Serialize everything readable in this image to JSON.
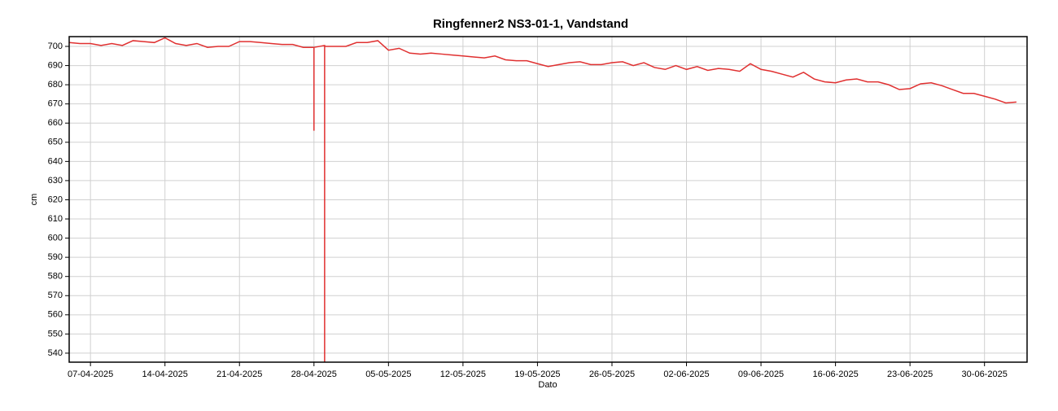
{
  "chart_data": {
    "type": "line",
    "title": "Ringfenner2 NS3-01-1, Vandstand",
    "x_label": "Dato",
    "y_label": "cm",
    "color": "#e03030",
    "grid": true,
    "xlim": [
      "05-04-2025",
      "04-07-2025"
    ],
    "xticks": [
      "07-04-2025",
      "14-04-2025",
      "21-04-2025",
      "28-04-2025",
      "05-05-2025",
      "12-05-2025",
      "19-05-2025",
      "26-05-2025",
      "02-06-2025",
      "09-06-2025",
      "16-06-2025",
      "23-06-2025",
      "30-06-2025"
    ],
    "ylim": [
      535.3,
      705.1
    ],
    "yticks": [
      540,
      550,
      560,
      570,
      580,
      590,
      600,
      610,
      620,
      630,
      640,
      650,
      660,
      670,
      680,
      690,
      700
    ],
    "x": [
      "05-04-2025",
      "06-04-2025",
      "07-04-2025",
      "08-04-2025",
      "09-04-2025",
      "10-04-2025",
      "11-04-2025",
      "12-04-2025",
      "13-04-2025",
      "14-04-2025",
      "15-04-2025",
      "16-04-2025",
      "17-04-2025",
      "18-04-2025",
      "19-04-2025",
      "20-04-2025",
      "21-04-2025",
      "22-04-2025",
      "23-04-2025",
      "24-04-2025",
      "25-04-2025",
      "26-04-2025",
      "27-04-2025",
      "28-04-2025",
      "28-04-2025",
      "28-04-2025",
      "29-04-2025",
      "29-04-2025",
      "29-04-2025",
      "30-04-2025",
      "01-05-2025",
      "02-05-2025",
      "03-05-2025",
      "04-05-2025",
      "05-05-2025",
      "06-05-2025",
      "07-05-2025",
      "08-05-2025",
      "09-05-2025",
      "10-05-2025",
      "11-05-2025",
      "12-05-2025",
      "13-05-2025",
      "14-05-2025",
      "15-05-2025",
      "16-05-2025",
      "17-05-2025",
      "18-05-2025",
      "19-05-2025",
      "20-05-2025",
      "21-05-2025",
      "22-05-2025",
      "23-05-2025",
      "24-05-2025",
      "25-05-2025",
      "26-05-2025",
      "27-05-2025",
      "28-05-2025",
      "29-05-2025",
      "30-05-2025",
      "31-05-2025",
      "01-06-2025",
      "02-06-2025",
      "03-06-2025",
      "04-06-2025",
      "05-06-2025",
      "06-06-2025",
      "07-06-2025",
      "08-06-2025",
      "09-06-2025",
      "10-06-2025",
      "11-06-2025",
      "12-06-2025",
      "13-06-2025",
      "14-06-2025",
      "15-06-2025",
      "16-06-2025",
      "17-06-2025",
      "18-06-2025",
      "19-06-2025",
      "20-06-2025",
      "21-06-2025",
      "22-06-2025",
      "23-06-2025",
      "24-06-2025",
      "25-06-2025",
      "26-06-2025",
      "27-06-2025",
      "28-06-2025",
      "29-06-2025",
      "30-06-2025",
      "01-07-2025",
      "02-07-2025",
      "03-07-2025"
    ],
    "values": [
      702,
      701.5,
      701.5,
      700.5,
      701.5,
      700.5,
      703,
      702.5,
      702,
      704.5,
      701.5,
      700.5,
      701.5,
      699.5,
      700,
      700,
      702.5,
      702.5,
      702,
      701.5,
      701,
      701,
      699.5,
      699.5,
      656,
      699.5,
      700.5,
      535,
      700,
      700,
      700,
      702,
      702,
      703,
      698,
      699,
      696.5,
      696,
      696.5,
      696,
      695.5,
      695,
      694.5,
      694,
      695,
      693,
      692.5,
      692.5,
      691,
      689.5,
      690.5,
      691.5,
      692,
      690.5,
      690.5,
      691.5,
      692,
      690,
      691.5,
      689,
      688,
      690,
      688,
      689.5,
      687.5,
      688.5,
      688,
      687,
      691,
      688,
      687,
      685.5,
      684,
      686.5,
      683,
      681.5,
      681,
      682.5,
      683,
      681.5,
      681.5,
      680,
      677.5,
      678,
      680.5,
      681,
      679.5,
      677.5,
      675.5,
      675.5,
      674,
      672.5,
      670.5,
      671
    ]
  }
}
